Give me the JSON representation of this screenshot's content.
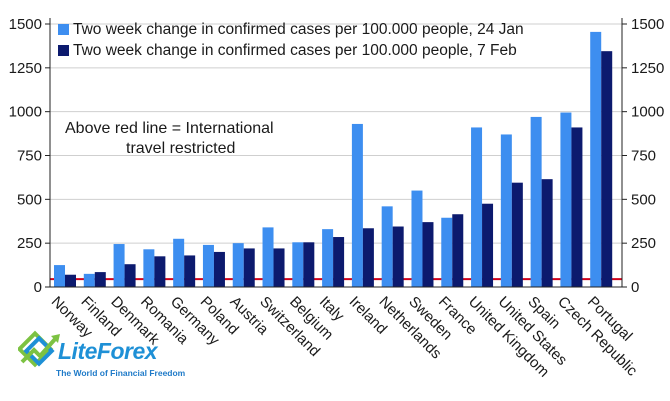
{
  "chart_data": {
    "type": "bar",
    "title": "",
    "xlabel": "",
    "ylabel": "",
    "ylim": [
      0,
      1500
    ],
    "yticks": [
      0,
      250,
      500,
      750,
      1000,
      1250,
      1500
    ],
    "categories": [
      "Norway",
      "Finland",
      "Denmark",
      "Romania",
      "Germany",
      "Poland",
      "Austria",
      "Switzerland",
      "Belgium",
      "Italy",
      "Ireland",
      "Netherlands",
      "Sweden",
      "France",
      "United Kingdom",
      "United States",
      "Spain",
      "Czech Republic",
      "Portugal"
    ],
    "series": [
      {
        "name": "Two week change in confirmed cases per 100.000 people, 24 Jan",
        "color": "#3d8ef0",
        "values": [
          125,
          75,
          245,
          215,
          275,
          240,
          250,
          340,
          255,
          330,
          930,
          460,
          550,
          395,
          910,
          870,
          970,
          995,
          1455
        ]
      },
      {
        "name": "Two week change in confirmed cases per 100.000 people, 7 Feb",
        "color": "#0c1a6e",
        "values": [
          70,
          85,
          130,
          175,
          180,
          200,
          220,
          220,
          255,
          285,
          335,
          345,
          370,
          415,
          475,
          595,
          615,
          910,
          1345
        ]
      }
    ],
    "reference_line": {
      "value": 45,
      "color": "#d0021b"
    },
    "annotation": [
      "Above red line = International",
      "travel restricted"
    ],
    "legend_position": "top"
  },
  "logo": {
    "brand": "LiteForex",
    "tagline": "The World of Financial Freedom"
  }
}
